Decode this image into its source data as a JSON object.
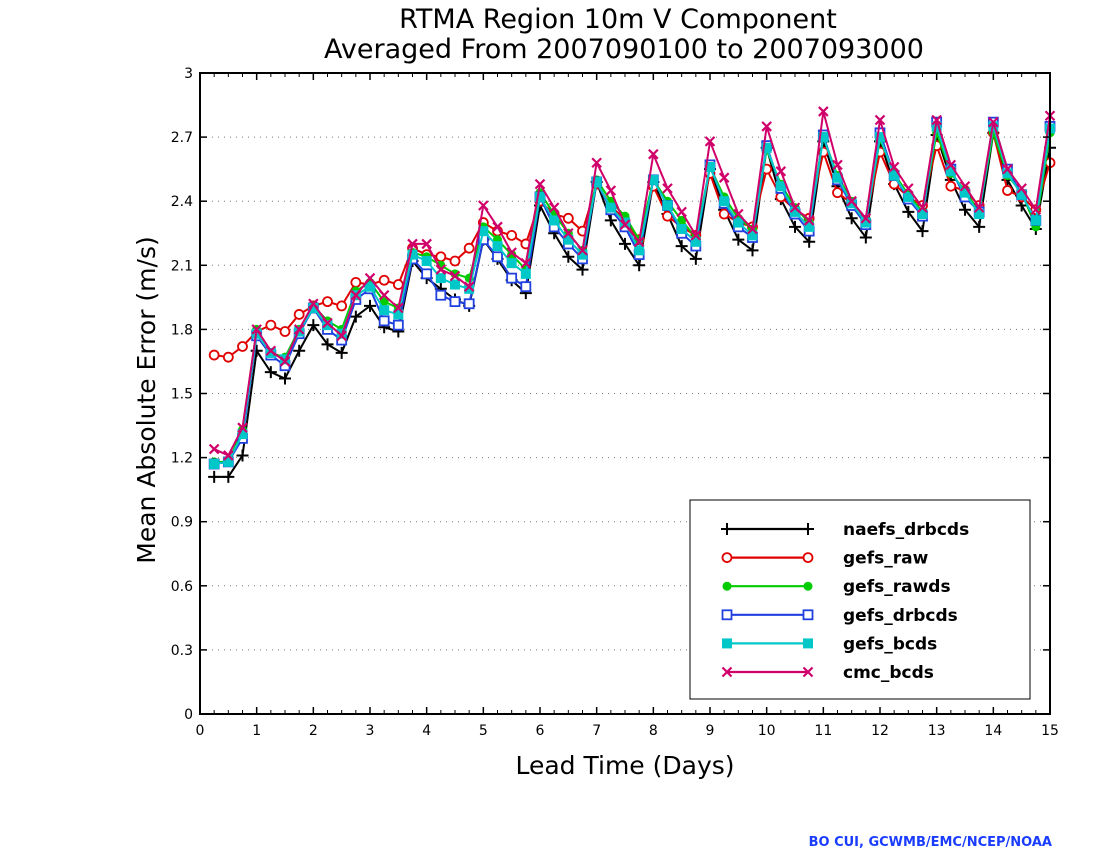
{
  "chart_data": {
    "type": "line",
    "title": "RTMA Region 10m V Component",
    "subtitle": "Averaged From 2007090100 to 2007093000",
    "xlabel": "Lead Time (Days)",
    "ylabel": "Mean Absolute Error (m/s)",
    "xlim": [
      0,
      15
    ],
    "ylim": [
      0,
      3
    ],
    "xticks": [
      "0",
      "1",
      "2",
      "3",
      "4",
      "5",
      "6",
      "7",
      "8",
      "9",
      "10",
      "11",
      "12",
      "13",
      "14",
      "15"
    ],
    "yticks": [
      "0",
      "0.3",
      "0.6",
      "0.9",
      "1.2",
      "1.5",
      "1.8",
      "2.1",
      "2.4",
      "2.7",
      "3"
    ],
    "grid": "horizontal dotted",
    "legend_position": "bottom-right",
    "credit": "BO CUI, GCWMB/EMC/NCEP/NOAA",
    "x": [
      0.25,
      0.5,
      0.75,
      1.0,
      1.25,
      1.5,
      1.75,
      2.0,
      2.25,
      2.5,
      2.75,
      3.0,
      3.25,
      3.5,
      3.75,
      4.0,
      4.25,
      4.5,
      4.75,
      5.0,
      5.25,
      5.5,
      5.75,
      6.0,
      6.25,
      6.5,
      6.75,
      7.0,
      7.25,
      7.5,
      7.75,
      8.0,
      8.25,
      8.5,
      8.75,
      9.0,
      9.25,
      9.5,
      9.75,
      10.0,
      10.25,
      10.5,
      10.75,
      11.0,
      11.25,
      11.5,
      11.75,
      12.0,
      12.25,
      12.5,
      12.75,
      13.0,
      13.25,
      13.5,
      13.75,
      14.0,
      14.25,
      14.5,
      14.75,
      15.0
    ],
    "series": [
      {
        "name": "naefs_drbcds",
        "color": "#000000",
        "marker": "plus",
        "values": [
          1.11,
          1.11,
          1.21,
          1.7,
          1.6,
          1.57,
          1.7,
          1.82,
          1.73,
          1.69,
          1.86,
          1.91,
          1.81,
          1.79,
          2.12,
          2.04,
          1.99,
          1.94,
          1.91,
          2.22,
          2.13,
          2.03,
          1.97,
          2.38,
          2.25,
          2.14,
          2.08,
          2.49,
          2.31,
          2.2,
          2.1,
          2.49,
          2.34,
          2.19,
          2.13,
          2.55,
          2.36,
          2.22,
          2.17,
          2.65,
          2.41,
          2.28,
          2.21,
          2.68,
          2.47,
          2.32,
          2.23,
          2.68,
          2.48,
          2.35,
          2.26,
          2.71,
          2.5,
          2.36,
          2.28,
          2.72,
          2.5,
          2.38,
          2.27,
          2.65
        ]
      },
      {
        "name": "gefs_raw",
        "color": "#e00000",
        "marker": "circle",
        "values": [
          1.68,
          1.67,
          1.72,
          1.79,
          1.82,
          1.79,
          1.87,
          1.91,
          1.93,
          1.91,
          2.02,
          2.01,
          2.03,
          2.01,
          2.18,
          2.15,
          2.14,
          2.12,
          2.18,
          2.3,
          2.26,
          2.24,
          2.2,
          2.4,
          2.34,
          2.32,
          2.26,
          2.48,
          2.38,
          2.31,
          2.22,
          2.47,
          2.33,
          2.28,
          2.24,
          2.53,
          2.34,
          2.3,
          2.28,
          2.55,
          2.42,
          2.36,
          2.32,
          2.63,
          2.44,
          2.39,
          2.31,
          2.63,
          2.48,
          2.42,
          2.38,
          2.66,
          2.47,
          2.45,
          2.38,
          2.72,
          2.45,
          2.42,
          2.36,
          2.58
        ]
      },
      {
        "name": "gefs_rawds",
        "color": "#00cc00",
        "marker": "dot",
        "values": [
          1.18,
          1.18,
          1.33,
          1.8,
          1.69,
          1.67,
          1.8,
          1.91,
          1.84,
          1.8,
          1.98,
          2.02,
          1.93,
          1.9,
          2.16,
          2.14,
          2.1,
          2.06,
          2.04,
          2.28,
          2.22,
          2.15,
          2.08,
          2.44,
          2.34,
          2.25,
          2.17,
          2.5,
          2.4,
          2.33,
          2.22,
          2.5,
          2.4,
          2.31,
          2.23,
          2.56,
          2.42,
          2.32,
          2.27,
          2.64,
          2.48,
          2.37,
          2.3,
          2.7,
          2.52,
          2.4,
          2.31,
          2.69,
          2.53,
          2.43,
          2.35,
          2.72,
          2.53,
          2.45,
          2.35,
          2.72,
          2.52,
          2.44,
          2.28,
          2.72
        ]
      },
      {
        "name": "gefs_drbcds",
        "color": "#2040e0",
        "marker": "square-open",
        "values": [
          1.17,
          1.18,
          1.29,
          1.77,
          1.68,
          1.63,
          1.78,
          1.9,
          1.8,
          1.75,
          1.94,
          1.99,
          1.84,
          1.82,
          2.13,
          2.06,
          1.96,
          1.93,
          1.92,
          2.22,
          2.14,
          2.04,
          2.0,
          2.42,
          2.28,
          2.2,
          2.13,
          2.49,
          2.36,
          2.28,
          2.15,
          2.5,
          2.38,
          2.25,
          2.19,
          2.57,
          2.39,
          2.28,
          2.23,
          2.66,
          2.46,
          2.34,
          2.26,
          2.71,
          2.5,
          2.38,
          2.29,
          2.72,
          2.52,
          2.41,
          2.33,
          2.77,
          2.55,
          2.42,
          2.35,
          2.77,
          2.55,
          2.43,
          2.31,
          2.75
        ]
      },
      {
        "name": "gefs_bcds",
        "color": "#00c8c8",
        "marker": "square-filled",
        "values": [
          1.17,
          1.18,
          1.31,
          1.78,
          1.69,
          1.66,
          1.79,
          1.9,
          1.82,
          1.78,
          1.96,
          2.0,
          1.89,
          1.87,
          2.15,
          2.12,
          2.04,
          2.01,
          1.99,
          2.26,
          2.19,
          2.11,
          2.06,
          2.42,
          2.31,
          2.22,
          2.15,
          2.49,
          2.37,
          2.3,
          2.17,
          2.5,
          2.38,
          2.27,
          2.21,
          2.56,
          2.4,
          2.3,
          2.24,
          2.65,
          2.47,
          2.35,
          2.28,
          2.7,
          2.51,
          2.39,
          2.3,
          2.7,
          2.52,
          2.42,
          2.34,
          2.75,
          2.54,
          2.44,
          2.34,
          2.75,
          2.53,
          2.43,
          2.31,
          2.74
        ]
      },
      {
        "name": "cmc_bcds",
        "color": "#d0006a",
        "marker": "x",
        "values": [
          1.24,
          1.21,
          1.34,
          1.8,
          1.7,
          1.65,
          1.8,
          1.92,
          1.83,
          1.77,
          1.96,
          2.04,
          1.96,
          1.9,
          2.2,
          2.2,
          2.08,
          2.05,
          2.0,
          2.38,
          2.28,
          2.16,
          2.11,
          2.48,
          2.37,
          2.25,
          2.17,
          2.58,
          2.45,
          2.29,
          2.21,
          2.62,
          2.46,
          2.35,
          2.24,
          2.68,
          2.51,
          2.34,
          2.27,
          2.75,
          2.54,
          2.37,
          2.31,
          2.82,
          2.57,
          2.4,
          2.32,
          2.78,
          2.56,
          2.46,
          2.37,
          2.78,
          2.57,
          2.47,
          2.37,
          2.77,
          2.55,
          2.46,
          2.36,
          2.8
        ]
      }
    ]
  }
}
